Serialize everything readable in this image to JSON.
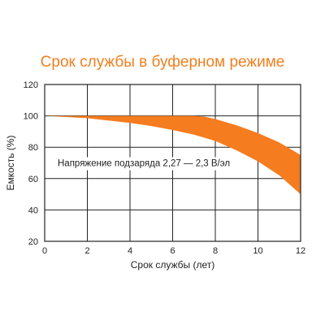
{
  "chart_data": {
    "type": "area",
    "title": "Срок службы в буферном режиме",
    "xlabel": "Срок службы (лет)",
    "ylabel": "Емкость (%)",
    "xlim": [
      0,
      12
    ],
    "ylim": [
      20,
      120
    ],
    "x_ticks": [
      0,
      2,
      4,
      6,
      8,
      10,
      12
    ],
    "y_ticks": [
      20,
      40,
      60,
      80,
      100,
      120
    ],
    "grid": true,
    "annotation": "Напряжение подзаряда 2,27 — 2,3 В/эл",
    "band_color": "#f57c1f",
    "series": [
      {
        "x": [
          0,
          1,
          2,
          3,
          4,
          5,
          6,
          7,
          7.5,
          8,
          9,
          10,
          11,
          12
        ],
        "values": [
          100,
          100,
          100,
          100,
          100,
          100,
          100,
          100,
          99.5,
          98,
          94,
          89,
          83,
          75
        ]
      },
      {
        "x": [
          0,
          1,
          2,
          3,
          4,
          5,
          6,
          7,
          8,
          9,
          10,
          11,
          12
        ],
        "values": [
          100,
          99.3,
          98.5,
          97,
          95.5,
          93.5,
          91,
          88,
          84,
          78,
          71,
          62,
          50
        ]
      }
    ]
  }
}
